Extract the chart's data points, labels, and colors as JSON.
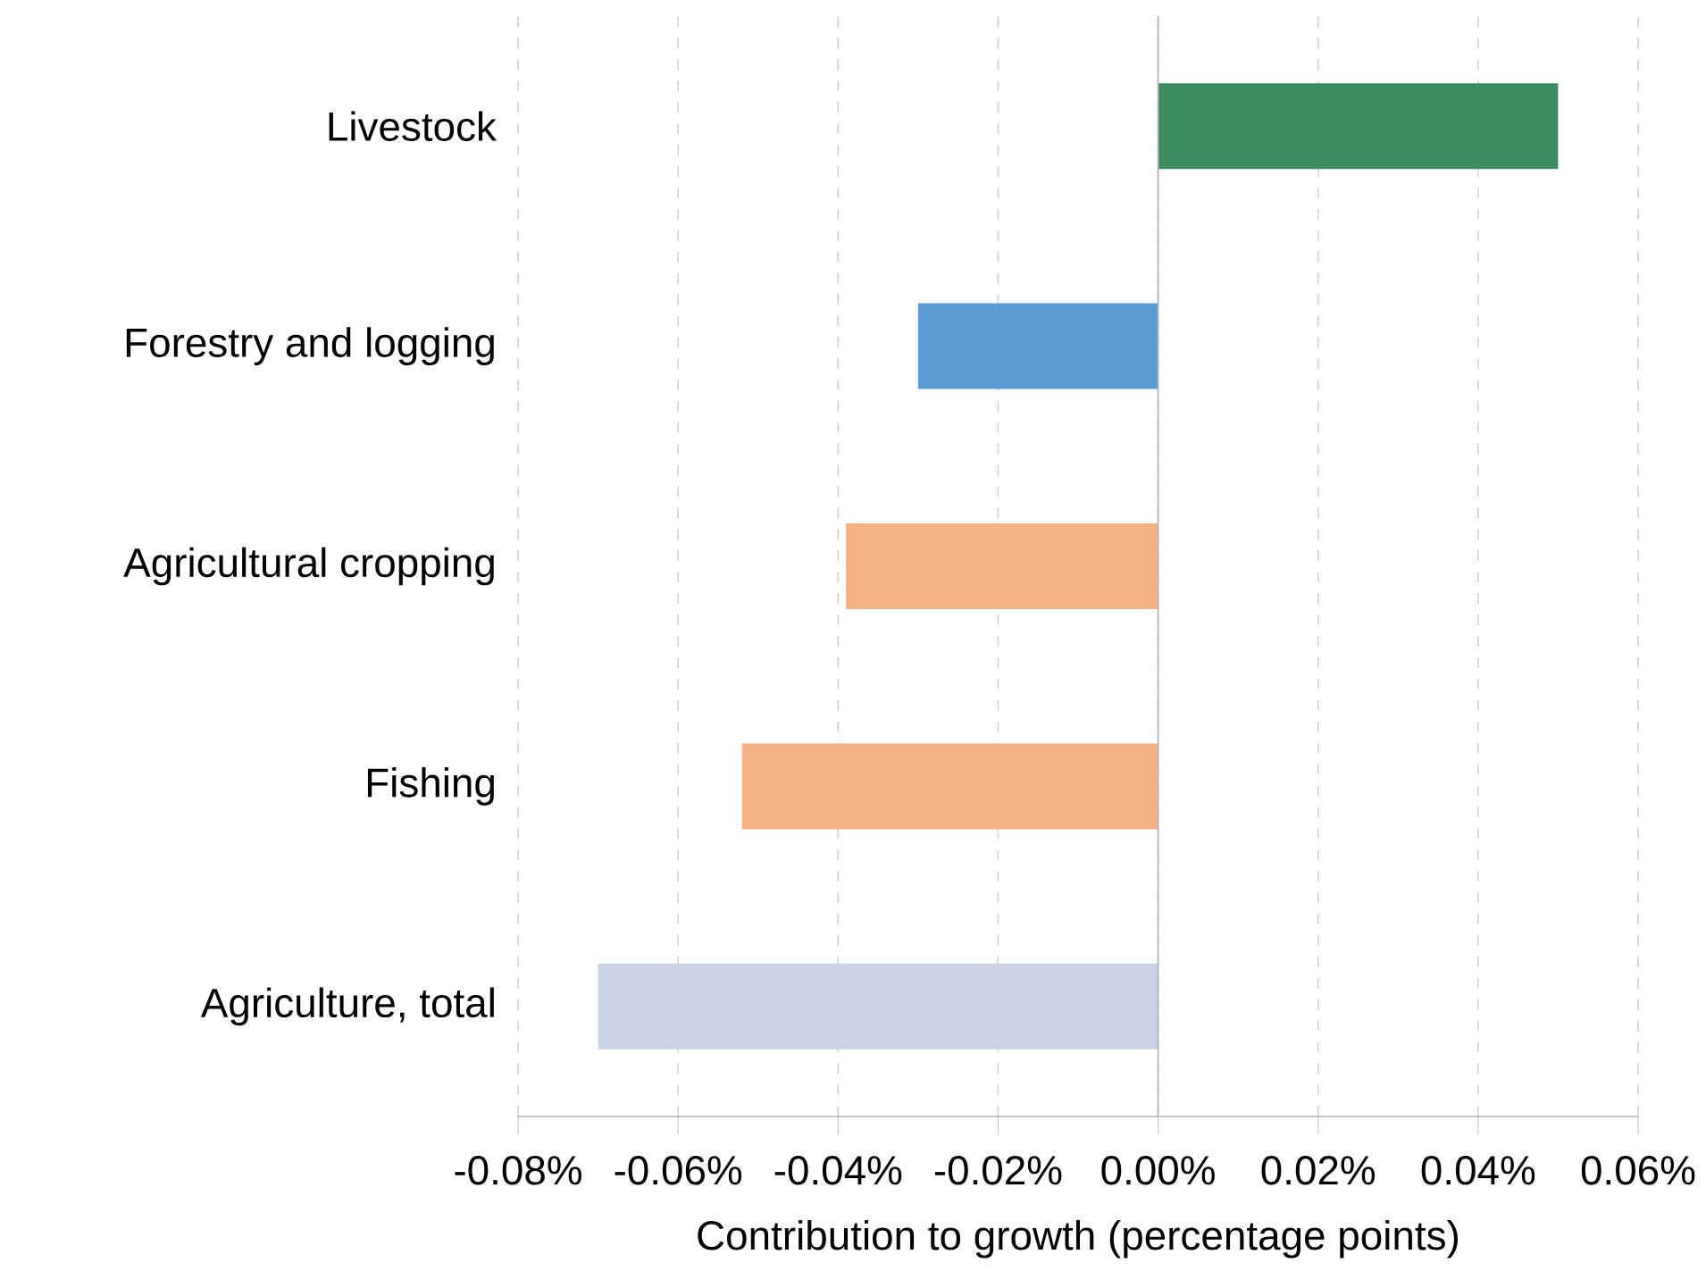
{
  "chart_data": {
    "type": "bar",
    "orientation": "horizontal",
    "xlabel": "Contribution to growth (percentage points)",
    "categories": [
      "Livestock",
      "Forestry and logging",
      "Agricultural cropping",
      "Fishing",
      "Agriculture, total"
    ],
    "values": [
      0.05,
      -0.03,
      -0.039,
      -0.052,
      -0.07
    ],
    "colors": [
      "#3c8c5f",
      "#5b9bd5",
      "#f4b183",
      "#f4b183",
      "#c9d3e3"
    ],
    "xlim": [
      -0.08,
      0.06
    ],
    "xticks": [
      {
        "value": -0.08,
        "label": "-0.08%"
      },
      {
        "value": -0.06,
        "label": "-0.06%"
      },
      {
        "value": -0.04,
        "label": "-0.04%"
      },
      {
        "value": -0.02,
        "label": "-0.02%"
      },
      {
        "value": 0,
        "label": "0.00%"
      },
      {
        "value": 0.02,
        "label": "0.02%"
      },
      {
        "value": 0.04,
        "label": "0.04%"
      },
      {
        "value": 0.06,
        "label": "0.06%"
      }
    ],
    "grid": "x"
  }
}
